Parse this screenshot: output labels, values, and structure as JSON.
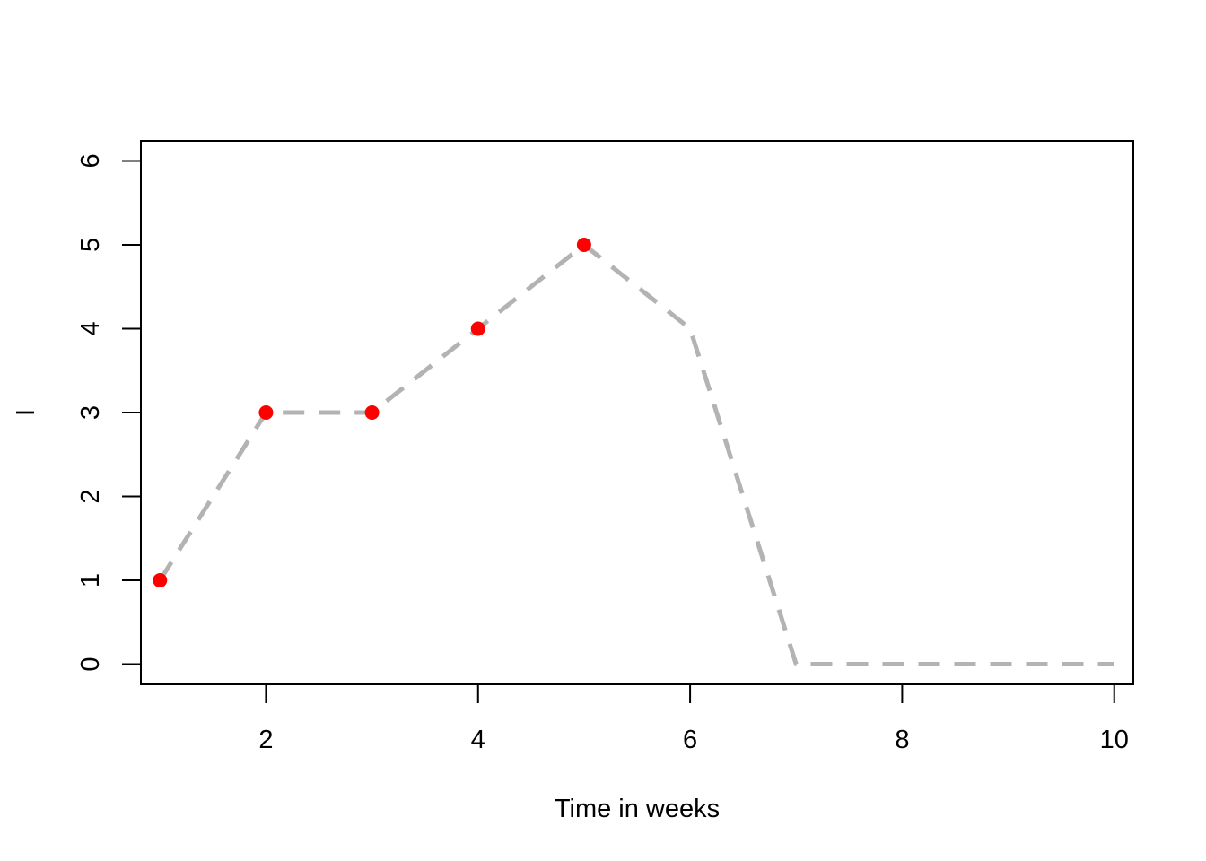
{
  "chart_data": {
    "type": "line",
    "title": "",
    "xlabel": "Time in weeks",
    "ylabel": "I",
    "xlim": [
      0.82,
      10.18
    ],
    "ylim": [
      -0.24,
      6.24
    ],
    "x_ticks": [
      2,
      4,
      6,
      8,
      10
    ],
    "y_ticks": [
      0,
      1,
      2,
      3,
      4,
      5,
      6
    ],
    "grid": false,
    "series": [
      {
        "style": "dashed-line",
        "color": "#b3b3b3",
        "x": [
          1,
          2,
          3,
          4,
          5,
          6,
          7,
          8,
          9,
          10
        ],
        "y": [
          1,
          3,
          3,
          4,
          5,
          4,
          0,
          0,
          0,
          0
        ]
      },
      {
        "style": "points",
        "color": "#ff0000",
        "x": [
          1,
          2,
          3,
          4,
          5
        ],
        "y": [
          1,
          3,
          3,
          4,
          5
        ]
      }
    ]
  }
}
